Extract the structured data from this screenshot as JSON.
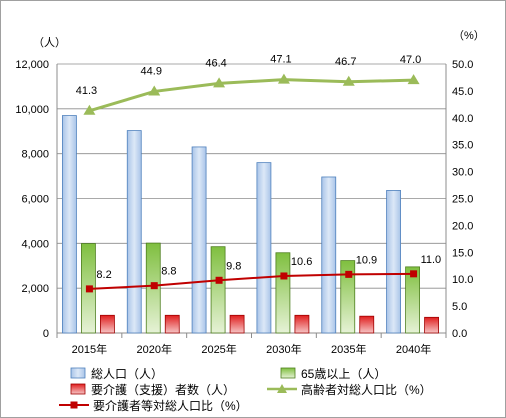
{
  "chart_data": {
    "type": "bar",
    "categories": [
      "2015年",
      "2020年",
      "2025年",
      "2030年",
      "2035年",
      "2040年"
    ],
    "left_axis_unit": "（人）",
    "right_axis_unit": "（%）",
    "left_ylim": [
      0,
      12000
    ],
    "left_ticks": [
      "0",
      "2,000",
      "4,000",
      "6,000",
      "8,000",
      "10,000",
      "12,000"
    ],
    "right_ylim": [
      0,
      50
    ],
    "right_ticks": [
      "0.0",
      "5.0",
      "10.0",
      "15.0",
      "20.0",
      "25.0",
      "30.0",
      "35.0",
      "40.0",
      "45.0",
      "50.0"
    ],
    "grid": true,
    "legend_position": "bottom",
    "series": [
      {
        "name": "総人口（人）",
        "kind": "bar",
        "axis": "left",
        "color": "#4f81bd",
        "values": [
          9700,
          9030,
          8300,
          7600,
          6960,
          6360
        ]
      },
      {
        "name": "65歳以上（人）",
        "kind": "bar",
        "axis": "left",
        "color": "#9bbb59",
        "values": [
          3990,
          4010,
          3850,
          3580,
          3230,
          2950
        ]
      },
      {
        "name": "要介護（支援）者数（人）",
        "kind": "bar",
        "axis": "left",
        "color": "#e03030",
        "values": [
          790,
          790,
          790,
          790,
          750,
          700
        ]
      },
      {
        "name": "高齢者対総人口比（%）",
        "kind": "line",
        "axis": "right",
        "color": "#9bbb59",
        "marker": "triangle",
        "values": [
          41.3,
          44.9,
          46.4,
          47.1,
          46.7,
          47.0
        ],
        "labels": [
          "41.3",
          "44.9",
          "46.4",
          "47.1",
          "46.7",
          "47.0"
        ]
      },
      {
        "name": "要介護者等対総人口比（%）",
        "kind": "line",
        "axis": "right",
        "color": "#c00000",
        "marker": "square",
        "values": [
          8.2,
          8.8,
          9.8,
          10.6,
          10.9,
          11.0
        ],
        "labels": [
          "8.2",
          "8.8",
          "9.8",
          "10.6",
          "10.9",
          "11.0"
        ]
      }
    ]
  }
}
